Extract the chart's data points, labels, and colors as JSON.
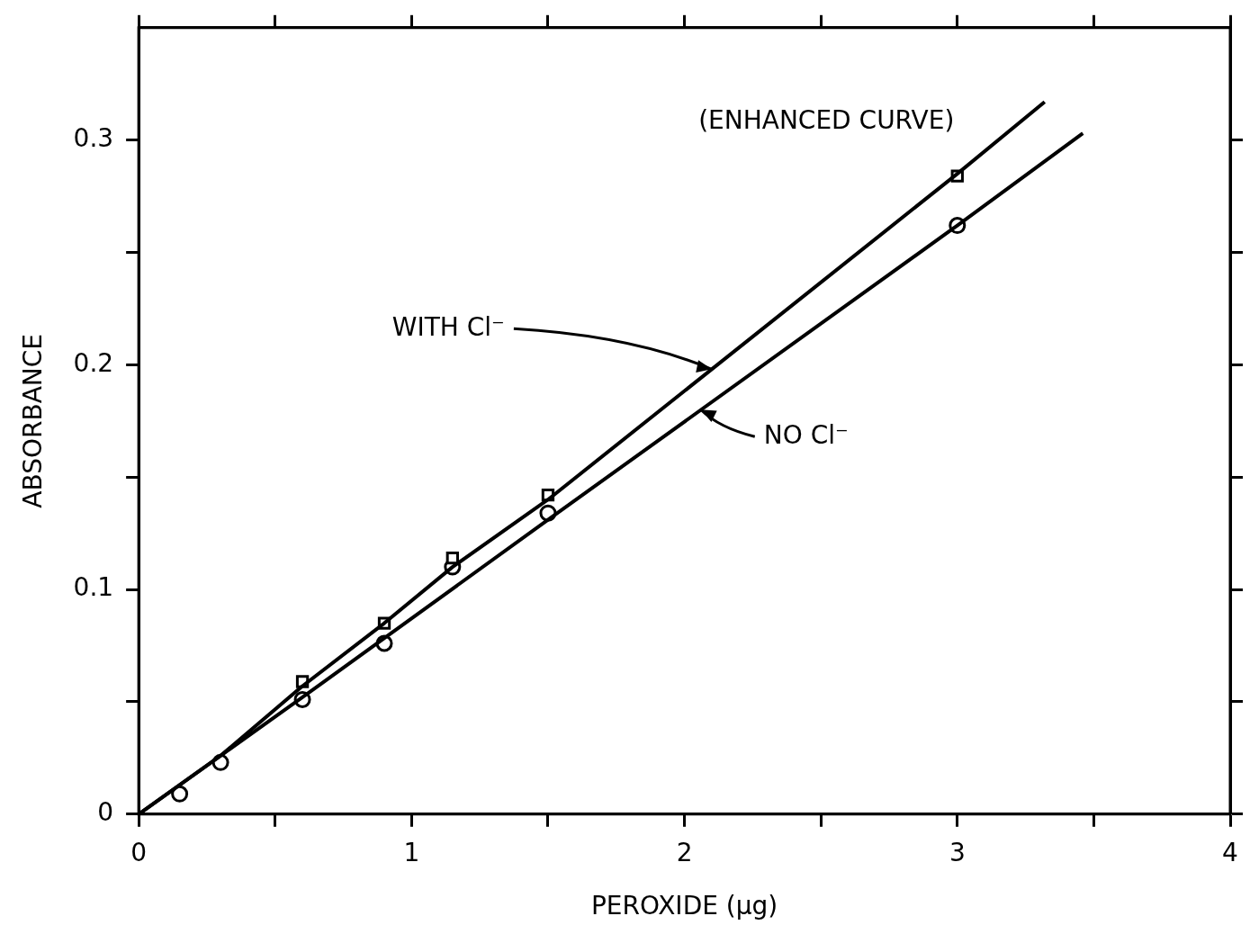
{
  "chart_data": {
    "type": "scatter",
    "xlabel": "PEROXIDE (μg)",
    "ylabel": "ABSORBANCE",
    "xlim": [
      0,
      4
    ],
    "xticks": [
      0,
      {
        "value": 0.5,
        "label": null
      },
      1,
      {
        "value": 1.5,
        "label": null
      },
      2,
      {
        "value": 2.5,
        "label": null
      },
      3,
      {
        "value": 3.5,
        "label": null
      },
      4
    ],
    "ylim": [
      0,
      0.35
    ],
    "yticks": [
      0,
      {
        "value": 0.05,
        "label": null
      },
      0.1,
      {
        "value": 0.15,
        "label": null
      },
      0.2,
      {
        "value": 0.25,
        "label": null
      },
      0.3
    ],
    "grid": false,
    "legend": false,
    "series": [
      {
        "type": "line",
        "marker": "none",
        "color": "#000000",
        "x": [
          0,
          0.3,
          0.6,
          0.9,
          1.15,
          1.5,
          3,
          3.32
        ],
        "values": [
          0,
          0.026,
          0.057,
          0.085,
          0.11,
          0.14,
          0.285,
          0.317
        ]
      },
      {
        "type": "line",
        "marker": "none",
        "color": "#000000",
        "x": [
          0,
          0.6,
          1.5,
          3,
          3.46
        ],
        "values": [
          0,
          0.052,
          0.131,
          0.262,
          0.303
        ]
      },
      {
        "marker": "square",
        "color": "#000000",
        "x": [
          0.6,
          0.9,
          1.15,
          1.5,
          3
        ],
        "values": [
          0.059,
          0.085,
          0.114,
          0.142,
          0.284
        ]
      },
      {
        "marker": "circle",
        "color": "#000000",
        "x": [
          0.15,
          0.3,
          0.6,
          0.9,
          1.15,
          1.5,
          3
        ],
        "values": [
          0.009,
          0.023,
          0.051,
          0.076,
          0.11,
          0.134,
          0.262
        ]
      }
    ],
    "annotations": [
      "(ENHANCED CURVE)",
      {
        "text": "WITH Cl⁻",
        "x": 2.1,
        "y": 0.198
      },
      {
        "text": "NO Cl⁻",
        "x": 2.06,
        "y": 0.18
      }
    ]
  }
}
